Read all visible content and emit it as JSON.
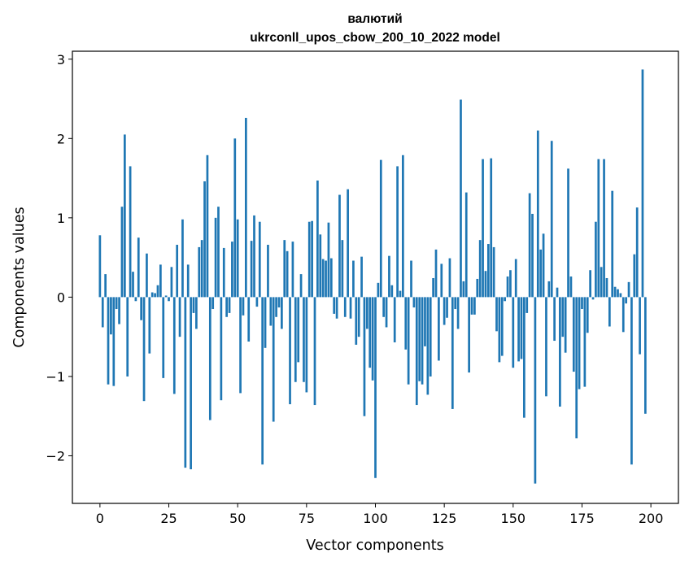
{
  "chart_data": {
    "type": "bar",
    "title": "валютий",
    "subtitle": "ukrconll_upos_cbow_200_10_2022 model",
    "xlabel": "Vector components",
    "ylabel": "Components values",
    "xlim": [
      -10,
      210
    ],
    "ylim": [
      -2.6,
      3.1
    ],
    "xticks": [
      0,
      25,
      50,
      75,
      100,
      125,
      150,
      175,
      200
    ],
    "yticks": [
      -2,
      -1,
      0,
      1,
      2,
      3
    ],
    "xtick_labels": [
      "0",
      "25",
      "50",
      "75",
      "100",
      "125",
      "150",
      "175",
      "200"
    ],
    "ytick_labels": [
      "−2",
      "−1",
      "0",
      "1",
      "2",
      "3"
    ],
    "grid": false,
    "color": "#1f77b4",
    "values": [
      0.78,
      -0.38,
      0.29,
      -1.1,
      -0.47,
      -1.12,
      -0.15,
      -0.34,
      1.14,
      2.05,
      -1.0,
      1.65,
      0.32,
      -0.05,
      0.75,
      -0.29,
      -1.31,
      0.55,
      -0.71,
      0.06,
      0.05,
      0.15,
      0.41,
      -1.02,
      0.02,
      -0.05,
      0.38,
      -1.22,
      0.66,
      -0.5,
      0.98,
      -2.15,
      0.41,
      -2.17,
      -0.2,
      -0.4,
      0.63,
      0.72,
      1.46,
      1.79,
      -1.55,
      -0.15,
      1.0,
      1.14,
      -1.3,
      0.62,
      -0.25,
      -0.2,
      0.7,
      2.0,
      0.98,
      -1.21,
      -0.23,
      2.26,
      -0.56,
      0.71,
      1.03,
      -0.12,
      0.95,
      -2.11,
      -0.64,
      0.66,
      -0.36,
      -1.57,
      -0.25,
      -0.13,
      -0.4,
      0.72,
      0.58,
      -1.35,
      0.7,
      -1.07,
      -0.82,
      0.29,
      -1.07,
      -1.2,
      0.95,
      0.96,
      -1.36,
      1.47,
      0.79,
      0.48,
      0.46,
      0.94,
      0.49,
      -0.21,
      -0.27,
      1.29,
      0.72,
      -0.25,
      1.36,
      -0.27,
      0.46,
      -0.6,
      -0.5,
      0.51,
      -1.5,
      -0.4,
      -0.89,
      -1.05,
      -2.28,
      0.18,
      1.73,
      -0.25,
      -0.38,
      0.52,
      0.15,
      -0.57,
      1.65,
      0.08,
      1.79,
      -0.66,
      -1.1,
      0.46,
      -0.13,
      -1.36,
      -1.06,
      -1.1,
      -0.62,
      -1.23,
      -1.0,
      0.24,
      0.6,
      -0.8,
      0.42,
      -0.35,
      -0.26,
      0.49,
      -1.41,
      -0.15,
      -0.4,
      2.49,
      0.2,
      1.32,
      -0.95,
      -0.22,
      -0.22,
      0.23,
      0.72,
      1.74,
      0.33,
      0.67,
      1.75,
      0.63,
      -0.43,
      -0.82,
      -0.74,
      -0.05,
      0.26,
      0.34,
      -0.89,
      0.48,
      -0.81,
      -0.78,
      -1.52,
      -0.2,
      1.31,
      1.05,
      -2.35,
      2.1,
      0.6,
      0.8,
      -1.25,
      0.2,
      1.97,
      -0.55,
      0.12,
      -1.38,
      -0.5,
      -0.7,
      1.62,
      0.26,
      -0.94,
      -1.78,
      -1.16,
      -0.15,
      -1.13,
      -0.45,
      0.34,
      -0.03,
      0.95,
      1.74,
      0.38,
      1.74,
      0.24,
      -0.37,
      1.34,
      0.13,
      0.1,
      0.05,
      -0.44,
      -0.08,
      0.19,
      -2.11,
      0.54,
      1.13,
      -0.72,
      2.87,
      -1.47
    ]
  }
}
